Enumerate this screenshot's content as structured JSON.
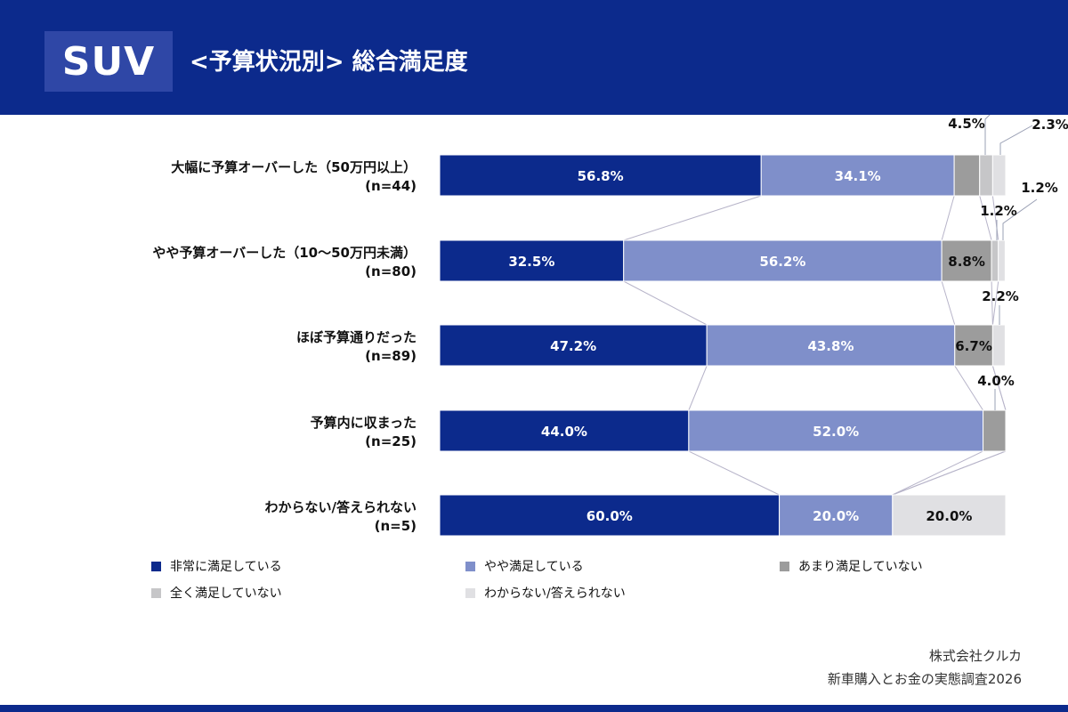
{
  "header": {
    "badge": "SUV",
    "title": "<予算状況別> 総合満足度"
  },
  "colors": {
    "background": "#0c2a8c",
    "panel": "#ffffff",
    "series": [
      "#0c2a8c",
      "#7f8fca",
      "#9c9c9c",
      "#c6c6c8",
      "#e0e0e3"
    ],
    "connector": "#b7b4c9"
  },
  "chart_data": {
    "type": "bar",
    "orientation": "horizontal",
    "stacked": true,
    "normalized": true,
    "categories": [
      {
        "label": "大幅に予算オーバーした（50万円以上）",
        "n": "(n=44)"
      },
      {
        "label": "やや予算オーバーした（10～50万円未満）",
        "n": "(n=80)"
      },
      {
        "label": "ほぼ予算通りだった",
        "n": "(n=89)"
      },
      {
        "label": "予算内に収まった",
        "n": "(n=25)"
      },
      {
        "label": "わからない/答えられない",
        "n": "(n=5)"
      }
    ],
    "series": [
      {
        "name": "非常に満足している",
        "values": [
          56.8,
          32.5,
          47.2,
          44.0,
          60.0
        ],
        "labels": [
          "56.8%",
          "32.5%",
          "47.2%",
          "44.0%",
          "60.0%"
        ]
      },
      {
        "name": "やや満足している",
        "values": [
          34.1,
          56.2,
          43.8,
          52.0,
          20.0
        ],
        "labels": [
          "34.1%",
          "56.2%",
          "43.8%",
          "52.0%",
          "20.0%"
        ]
      },
      {
        "name": "あまり満足していない",
        "values": [
          4.5,
          8.8,
          6.7,
          4.0,
          0
        ],
        "labels": [
          "4.5%",
          "8.8%",
          "6.7%",
          "4.0%",
          ""
        ]
      },
      {
        "name": "全く満足していない",
        "values": [
          2.3,
          1.2,
          0,
          0,
          0
        ],
        "labels": [
          "2.3%",
          "1.2%",
          "",
          "",
          ""
        ]
      },
      {
        "name": "わからない/答えられない",
        "values": [
          2.3,
          1.2,
          2.2,
          0,
          20.0
        ],
        "labels": [
          "2.3%",
          "1.2%",
          "2.2%",
          "",
          "20.0%"
        ]
      }
    ],
    "xlim": [
      0,
      100
    ],
    "legend": "bottom"
  },
  "source": {
    "line1": "株式会社クルカ",
    "line2": "新車購入とお金の実態調査2026"
  }
}
